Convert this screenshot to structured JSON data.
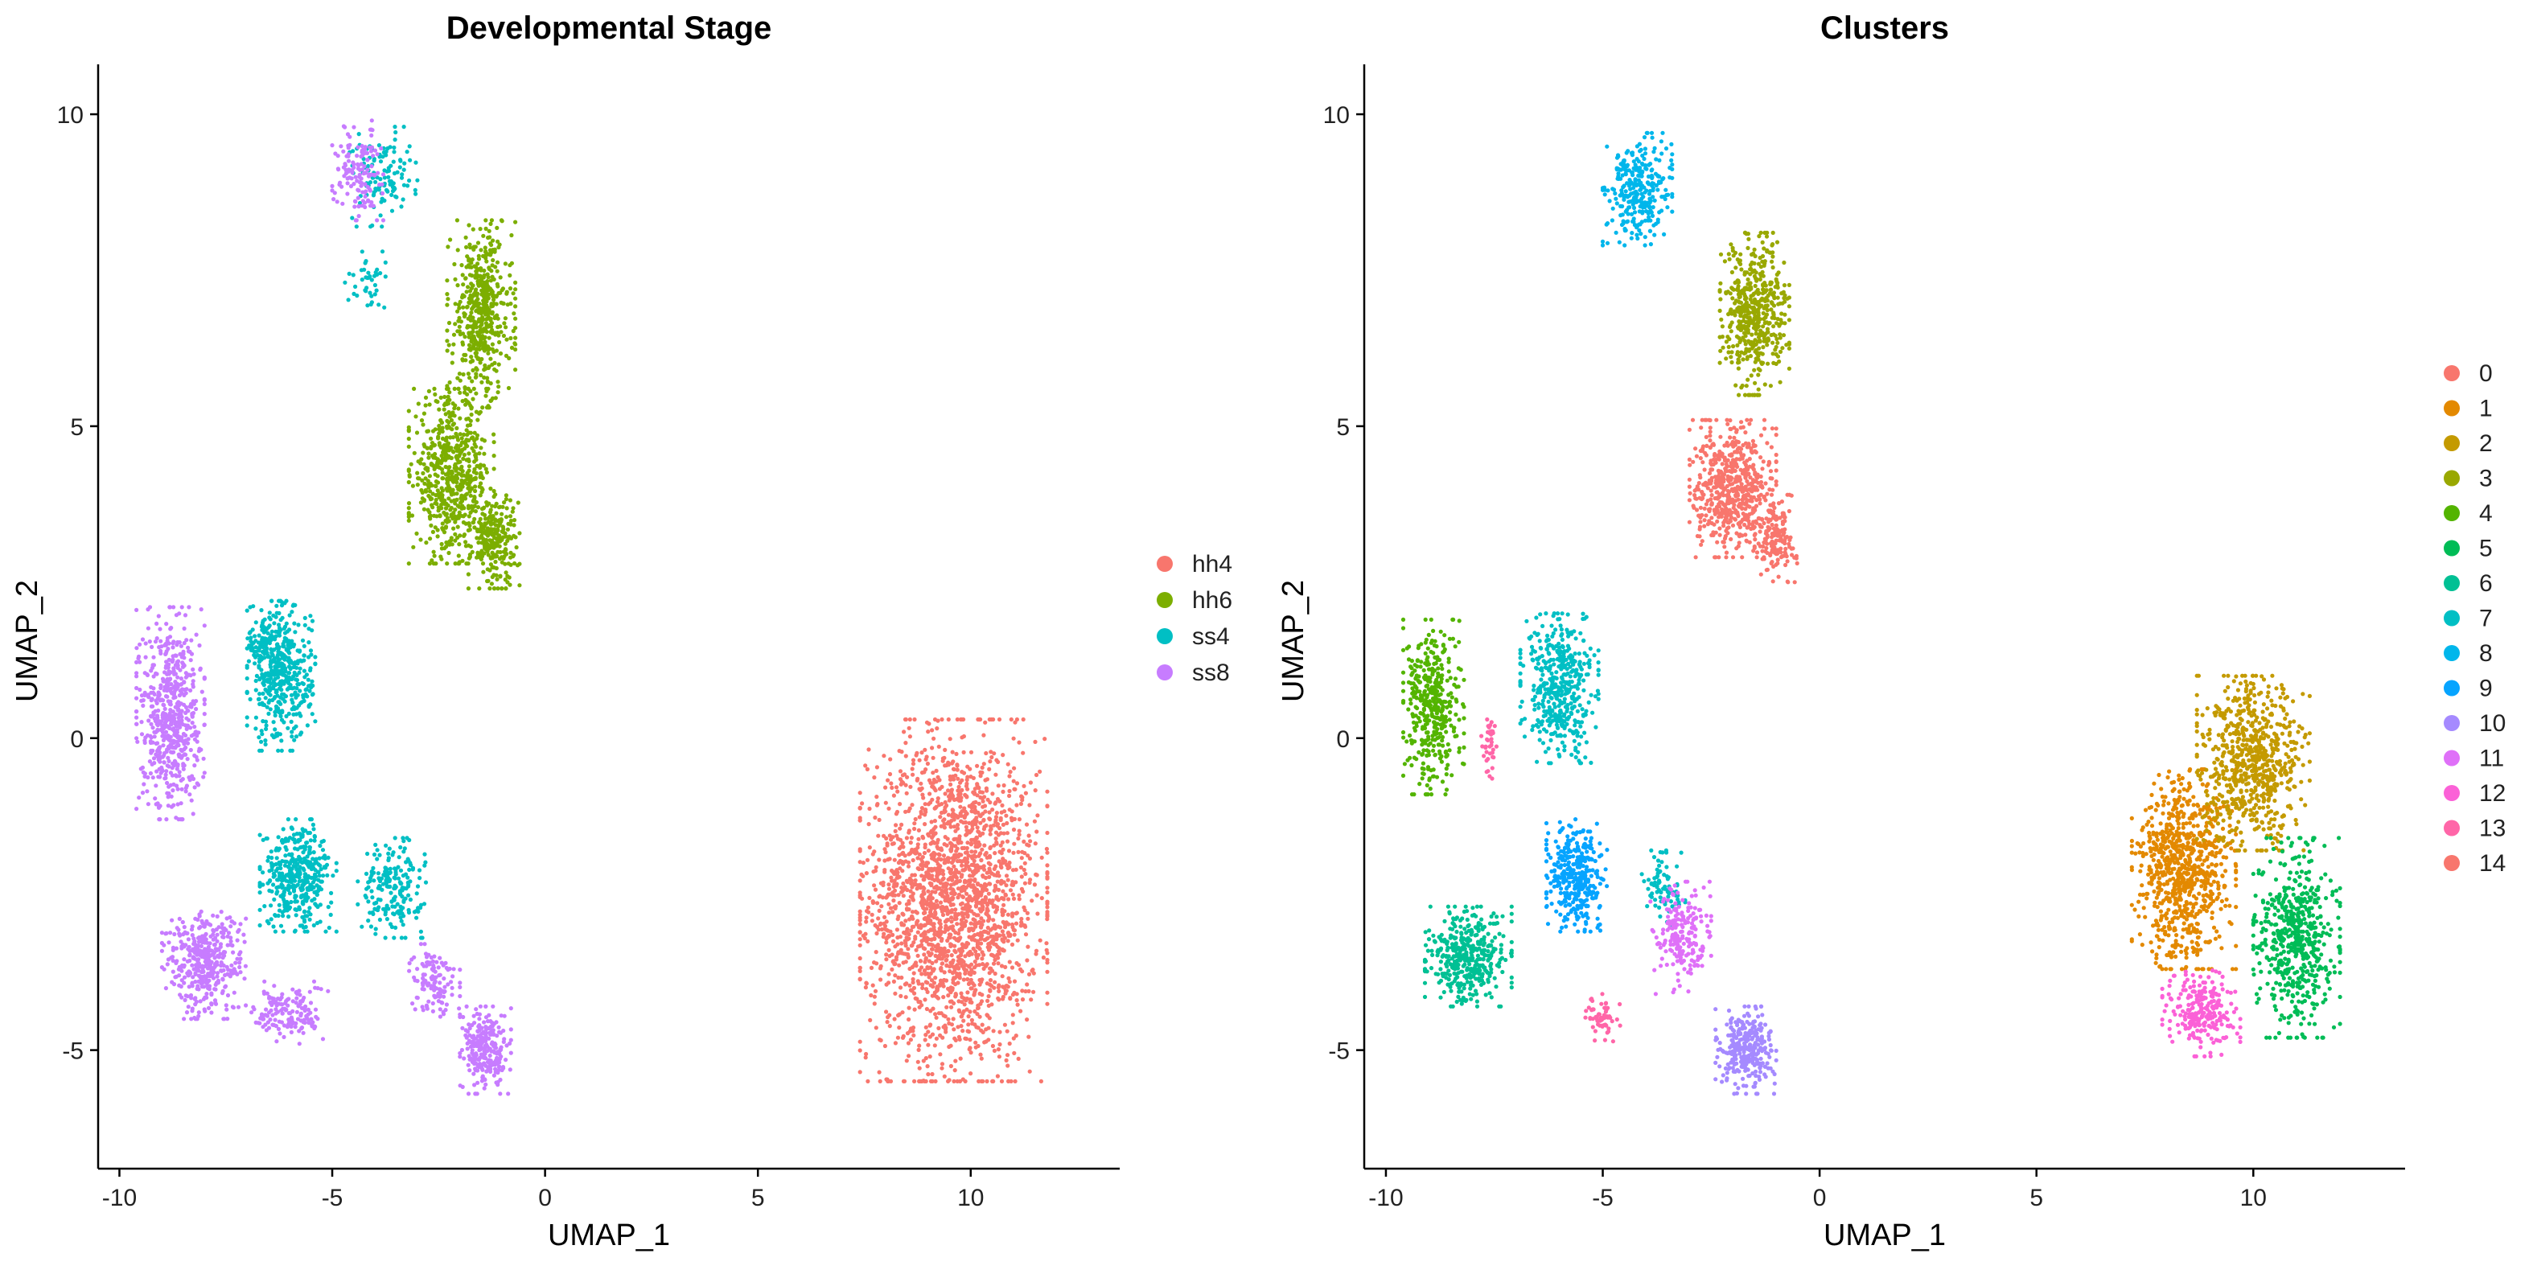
{
  "chart_data": [
    {
      "type": "scatter",
      "title": "Developmental Stage",
      "xlabel": "UMAP_1",
      "ylabel": "UMAP_2",
      "xlim": [
        -10.5,
        13.5
      ],
      "ylim": [
        -6.9,
        10.8
      ],
      "x_ticks": [
        -10,
        -5,
        0,
        5,
        10
      ],
      "y_ticks": [
        -5,
        0,
        5,
        10
      ],
      "grid": false,
      "legend_position": "right",
      "series": [
        {
          "name": "hh4",
          "color": "#F8766D",
          "blobs": [
            [
              9.6,
              -2.6,
              2.2,
              2.9,
              2200
            ]
          ]
        },
        {
          "name": "hh6",
          "color": "#7CAE00",
          "blobs": [
            [
              -1.5,
              6.8,
              0.8,
              1.5,
              500
            ],
            [
              -2.2,
              4.2,
              1.0,
              1.4,
              600
            ],
            [
              -1.2,
              3.2,
              0.6,
              0.8,
              250
            ]
          ]
        },
        {
          "name": "ss4",
          "color": "#00BFC4",
          "blobs": [
            [
              -6.2,
              1.0,
              0.8,
              1.2,
              450
            ],
            [
              -5.8,
              -2.2,
              0.9,
              0.9,
              400
            ],
            [
              -3.6,
              -2.4,
              0.8,
              0.8,
              200
            ],
            [
              -3.8,
              9.0,
              0.8,
              0.8,
              120
            ],
            [
              -4.2,
              7.3,
              0.5,
              0.5,
              40
            ],
            [
              -6.6,
              1.5,
              0.4,
              0.6,
              60
            ]
          ]
        },
        {
          "name": "ss8",
          "color": "#C77CFF",
          "blobs": [
            [
              -8.8,
              0.4,
              0.8,
              1.7,
              600
            ],
            [
              -8.0,
              -3.6,
              1.0,
              0.9,
              420
            ],
            [
              -6.0,
              -4.4,
              0.9,
              0.5,
              150
            ],
            [
              -1.4,
              -5.0,
              0.6,
              0.7,
              260
            ],
            [
              -2.6,
              -3.9,
              0.6,
              0.6,
              120
            ],
            [
              -4.4,
              9.1,
              0.6,
              0.8,
              140
            ]
          ]
        }
      ]
    },
    {
      "type": "scatter",
      "title": "Clusters",
      "xlabel": "UMAP_1",
      "ylabel": "UMAP_2",
      "xlim": [
        -10.5,
        13.5
      ],
      "ylim": [
        -6.9,
        10.8
      ],
      "x_ticks": [
        -10,
        -5,
        0,
        5,
        10
      ],
      "y_ticks": [
        -5,
        0,
        5,
        10
      ],
      "grid": false,
      "legend_position": "right",
      "series": [
        {
          "name": "0",
          "color": "#F8766D",
          "blobs": [
            [
              -2.0,
              4.0,
              1.0,
              1.1,
              600
            ],
            [
              -1.0,
              3.2,
              0.5,
              0.7,
              150
            ]
          ]
        },
        {
          "name": "1",
          "color": "#E38900",
          "blobs": [
            [
              8.4,
              -2.1,
              1.2,
              1.6,
              800
            ]
          ]
        },
        {
          "name": "2",
          "color": "#C49A00",
          "blobs": [
            [
              10.0,
              -0.4,
              1.3,
              1.4,
              700
            ]
          ]
        },
        {
          "name": "3",
          "color": "#99A800",
          "blobs": [
            [
              -1.5,
              6.8,
              0.8,
              1.3,
              500
            ]
          ]
        },
        {
          "name": "4",
          "color": "#53B400",
          "blobs": [
            [
              -8.9,
              0.5,
              0.7,
              1.4,
              400
            ]
          ]
        },
        {
          "name": "5",
          "color": "#00BC56",
          "blobs": [
            [
              11.0,
              -3.2,
              1.0,
              1.6,
              550
            ]
          ]
        },
        {
          "name": "6",
          "color": "#00C094",
          "blobs": [
            [
              -8.1,
              -3.5,
              1.0,
              0.8,
              400
            ]
          ]
        },
        {
          "name": "7",
          "color": "#00BFC4",
          "blobs": [
            [
              -6.0,
              0.8,
              0.9,
              1.2,
              450
            ],
            [
              -3.6,
              -2.4,
              0.5,
              0.6,
              80
            ]
          ]
        },
        {
          "name": "8",
          "color": "#00B6EB",
          "blobs": [
            [
              -4.2,
              8.8,
              0.8,
              0.9,
              300
            ]
          ]
        },
        {
          "name": "9",
          "color": "#06A4FF",
          "blobs": [
            [
              -5.6,
              -2.2,
              0.7,
              0.9,
              350
            ]
          ]
        },
        {
          "name": "10",
          "color": "#A58AFF",
          "blobs": [
            [
              -1.7,
              -5.0,
              0.7,
              0.7,
              300
            ]
          ]
        },
        {
          "name": "11",
          "color": "#DF70F8",
          "blobs": [
            [
              -3.2,
              -3.2,
              0.7,
              0.9,
              200
            ]
          ]
        },
        {
          "name": "12",
          "color": "#FB61D7",
          "blobs": [
            [
              8.8,
              -4.4,
              0.9,
              0.7,
              250
            ]
          ]
        },
        {
          "name": "13",
          "color": "#FF66A8",
          "blobs": [
            [
              -5.0,
              -4.5,
              0.4,
              0.4,
              60
            ],
            [
              -7.6,
              -0.2,
              0.2,
              0.5,
              40
            ]
          ]
        },
        {
          "name": "14",
          "color": "#F8766D",
          "blobs": []
        }
      ]
    }
  ]
}
